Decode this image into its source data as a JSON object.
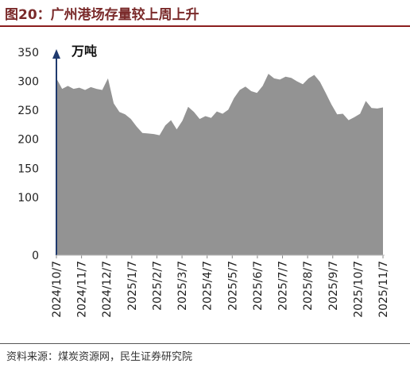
{
  "header": {
    "title": "图20：广州港场存量较上周上升"
  },
  "footer": {
    "source": "资料来源：煤炭资源网，民生证券研究院"
  },
  "colors": {
    "area": "#939393",
    "axis": "#1f3a6e",
    "title": "#7a2a2a",
    "rule": "#8b1e1e"
  },
  "chart_data": {
    "type": "area",
    "unit_label": "万吨",
    "ylim": [
      0,
      350
    ],
    "yticks": [
      0,
      100,
      150,
      200,
      250,
      300,
      350
    ],
    "xticks": [
      "2024/10/7",
      "2024/11/7",
      "2024/12/7",
      "2025/1/7",
      "2025/2/7",
      "2025/3/7",
      "2025/4/7",
      "2025/5/7",
      "2025/6/7",
      "2025/7/7",
      "2025/8/7",
      "2025/9/7",
      "2025/10/7",
      "2025/11/7"
    ],
    "grid": false,
    "series": [
      {
        "values": [
          305,
          287,
          292,
          287,
          289,
          285,
          290,
          287,
          285,
          305,
          262,
          247,
          243,
          235,
          222,
          211,
          210,
          209,
          207,
          224,
          233,
          217,
          232,
          256,
          247,
          235,
          240,
          237,
          248,
          244,
          251,
          271,
          285,
          291,
          283,
          280,
          292,
          313,
          305,
          303,
          308,
          306,
          300,
          295,
          305,
          311,
          299,
          280,
          260,
          243,
          244,
          233,
          238,
          244,
          266,
          254,
          253,
          255
        ]
      }
    ]
  }
}
